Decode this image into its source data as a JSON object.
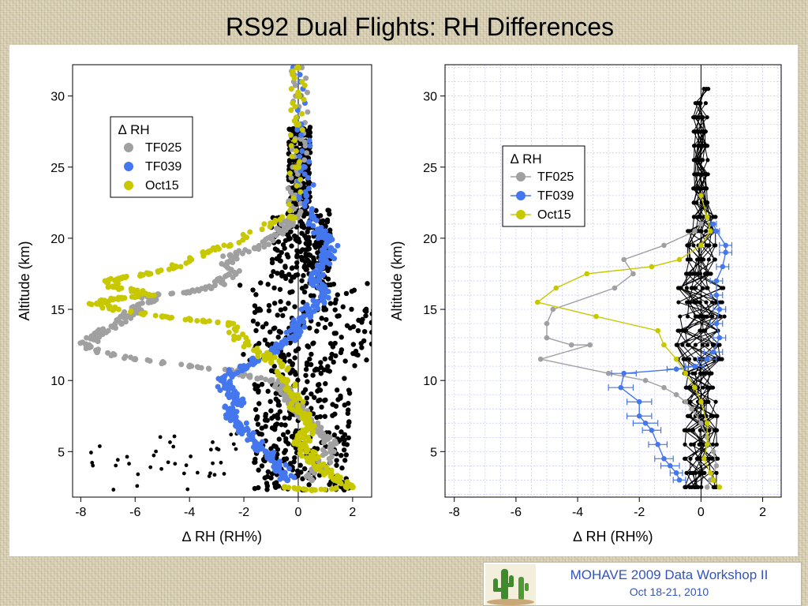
{
  "slide": {
    "title": "RS92 Dual Flights: RH Differences",
    "footer_title": "MOHAVE 2009 Data Workshop II",
    "footer_date": "Oct 18-21, 2010"
  },
  "colors": {
    "TF025": "#a0a0a0",
    "TF039": "#4477ee",
    "Oct15": "#c8c800",
    "individual": "#000000",
    "grid": "#c8c8ff"
  },
  "chart_data": [
    {
      "type": "scatter",
      "xlabel": "∆ RH (RH%)",
      "ylabel": "Altitude (km)",
      "xlim": [
        -8.3,
        2.7
      ],
      "ylim": [
        1.8,
        32.2
      ],
      "xticks": [
        -8,
        -6,
        -4,
        -2,
        0,
        2
      ],
      "yticks": [
        5,
        10,
        15,
        20,
        25,
        30
      ],
      "grid": false,
      "legend": {
        "title": "∆ RH",
        "position": "top-left",
        "entries": [
          "TF025",
          "TF039",
          "Oct15"
        ]
      },
      "series": [
        {
          "name": "TF025",
          "x": [
            0.0,
            0.1,
            0.1,
            0.0,
            -0.1,
            -0.2,
            -0.4,
            -0.6,
            -1.0,
            -1.6,
            -2.5,
            -2.6,
            -2.3,
            -2.8,
            -3.2,
            -4.0,
            -5.5,
            -5.5,
            -6.0,
            -6.3,
            -6.5,
            -7.2,
            -7.5,
            -7.8,
            -7.4,
            -6.0,
            -4.0,
            -2.5,
            -1.8,
            -1.0,
            -0.6,
            -0.3,
            -0.2,
            0.0,
            0.2,
            0.5,
            0.8,
            1.0,
            1.2,
            1.2,
            0.8,
            0.5
          ],
          "y": [
            32.0,
            30.0,
            27.0,
            25.0,
            23.0,
            21.5,
            21.0,
            20.5,
            20.0,
            19.3,
            18.8,
            18.3,
            17.5,
            17.0,
            16.5,
            16.2,
            16.0,
            15.5,
            15.0,
            14.5,
            14.0,
            13.5,
            13.0,
            12.5,
            12.0,
            11.5,
            11.0,
            10.7,
            10.3,
            10.0,
            9.5,
            9.0,
            8.5,
            8.0,
            7.5,
            7.0,
            6.5,
            6.0,
            5.5,
            5.0,
            4.0,
            3.0
          ]
        },
        {
          "name": "TF039",
          "x": [
            0.0,
            0.1,
            0.2,
            0.3,
            0.5,
            0.8,
            1.0,
            1.2,
            1.1,
            0.9,
            0.7,
            0.6,
            0.8,
            0.9,
            0.7,
            0.4,
            0.2,
            0.0,
            -0.1,
            -0.3,
            -0.6,
            -1.0,
            -1.5,
            -2.0,
            -2.5,
            -2.8,
            -2.7,
            -2.4,
            -2.2,
            -2.5,
            -2.4,
            -2.2,
            -2.0,
            -1.7,
            -1.5,
            -1.2,
            -1.0,
            -0.7,
            -0.5,
            -0.4
          ],
          "y": [
            32.0,
            28.0,
            25.0,
            23.0,
            21.5,
            20.5,
            20.0,
            19.3,
            18.8,
            18.2,
            17.5,
            17.0,
            16.5,
            16.0,
            15.5,
            15.0,
            14.5,
            14.0,
            13.5,
            13.0,
            12.5,
            12.0,
            11.5,
            11.0,
            10.5,
            10.0,
            9.5,
            9.0,
            8.5,
            8.0,
            7.5,
            7.0,
            6.5,
            6.0,
            5.5,
            5.0,
            4.5,
            4.0,
            3.5,
            3.0
          ]
        },
        {
          "name": "Oct15",
          "x": [
            0.0,
            0.0,
            0.0,
            0.0,
            -0.3,
            -1.0,
            -2.5,
            -3.5,
            -4.5,
            -5.5,
            -6.5,
            -7.0,
            -6.8,
            -6.0,
            -5.5,
            -6.5,
            -7.2,
            -7.4,
            -6.8,
            -5.0,
            -3.5,
            -2.5,
            -2.2,
            -1.5,
            -1.0,
            -0.6,
            -0.4,
            -0.2,
            0.0,
            0.2,
            0.4,
            0.3,
            0.2,
            0.1,
            0.3,
            0.5,
            0.8,
            1.0,
            1.5,
            2.0,
            0.5,
            -0.5
          ],
          "y": [
            32.0,
            30.0,
            28.0,
            25.0,
            21.5,
            21.0,
            19.5,
            19.0,
            18.0,
            17.5,
            17.2,
            17.0,
            16.6,
            16.3,
            16.0,
            15.8,
            15.6,
            15.4,
            15.0,
            14.5,
            14.2,
            14.0,
            13.0,
            12.0,
            11.5,
            11.0,
            10.0,
            9.0,
            8.0,
            7.5,
            7.0,
            6.5,
            6.0,
            5.5,
            5.0,
            4.5,
            4.0,
            3.5,
            3.0,
            2.5,
            2.3,
            2.5
          ]
        }
      ]
    },
    {
      "type": "line",
      "xlabel": "∆ RH (RH%)",
      "ylabel": "Altitude (km)",
      "xlim": [
        -8.3,
        2.6
      ],
      "ylim": [
        1.8,
        32.2
      ],
      "xticks": [
        -8,
        -6,
        -4,
        -2,
        0,
        2
      ],
      "yticks": [
        5,
        10,
        15,
        20,
        25,
        30
      ],
      "grid": true,
      "legend": {
        "title": "∆ RH",
        "position": "top-left",
        "entries": [
          "TF025",
          "TF039",
          "Oct15"
        ]
      },
      "series": [
        {
          "name": "TF025",
          "x": [
            0.0,
            -0.2,
            -1.2,
            -2.5,
            -2.2,
            -2.8,
            -4.8,
            -5.0,
            -5.0,
            -4.2,
            -3.6,
            -5.2,
            -3.0,
            -1.8,
            -1.2,
            -0.8,
            -0.5,
            -0.3,
            0.0,
            0.2,
            0.4,
            0.5,
            0.3,
            0.2
          ],
          "y": [
            21.0,
            20.5,
            19.5,
            18.5,
            17.5,
            16.5,
            15.0,
            14.0,
            13.0,
            12.5,
            12.5,
            11.5,
            10.5,
            10.0,
            9.5,
            9.0,
            8.5,
            8.0,
            7.0,
            6.0,
            5.0,
            4.0,
            3.0,
            2.5
          ]
        },
        {
          "name": "TF039",
          "x": [
            0.4,
            0.5,
            0.8,
            0.8,
            0.7,
            0.5,
            0.5,
            0.6,
            0.5,
            0.6,
            0.4,
            0.2,
            -0.2,
            -0.8,
            -2.5,
            -2.6,
            -2.0,
            -2.0,
            -1.8,
            -1.6,
            -1.4,
            -1.2,
            -1.0,
            -0.8,
            -0.7
          ],
          "y": [
            21.0,
            20.5,
            19.5,
            19.0,
            18.0,
            17.0,
            16.0,
            15.0,
            14.0,
            13.0,
            12.0,
            11.5,
            11.0,
            10.8,
            10.5,
            9.5,
            8.5,
            7.5,
            7.0,
            6.5,
            5.5,
            4.5,
            4.0,
            3.5,
            3.0
          ],
          "xerr": [
            0.1,
            0.1,
            0.2,
            0.2,
            0.2,
            0.2,
            0.2,
            0.2,
            0.2,
            0.2,
            0.3,
            0.3,
            0.3,
            0.3,
            0.4,
            0.4,
            0.4,
            0.4,
            0.4,
            0.3,
            0.3,
            0.3,
            0.3,
            0.2,
            0.2
          ]
        },
        {
          "name": "Oct15",
          "x": [
            0.0,
            0.2,
            0.3,
            0.0,
            -0.7,
            -1.6,
            -3.7,
            -4.7,
            -5.3,
            -3.4,
            -1.4,
            -1.2,
            -0.8,
            -0.5,
            -0.2,
            0.0,
            0.2,
            0.2,
            0.1,
            0.3,
            0.4,
            0.6
          ],
          "y": [
            23.0,
            21.5,
            20.5,
            19.5,
            18.5,
            18.0,
            17.5,
            16.5,
            15.5,
            14.5,
            13.5,
            12.5,
            11.5,
            10.5,
            9.5,
            8.5,
            7.0,
            5.5,
            4.5,
            3.5,
            3.0,
            2.5
          ]
        }
      ]
    }
  ]
}
